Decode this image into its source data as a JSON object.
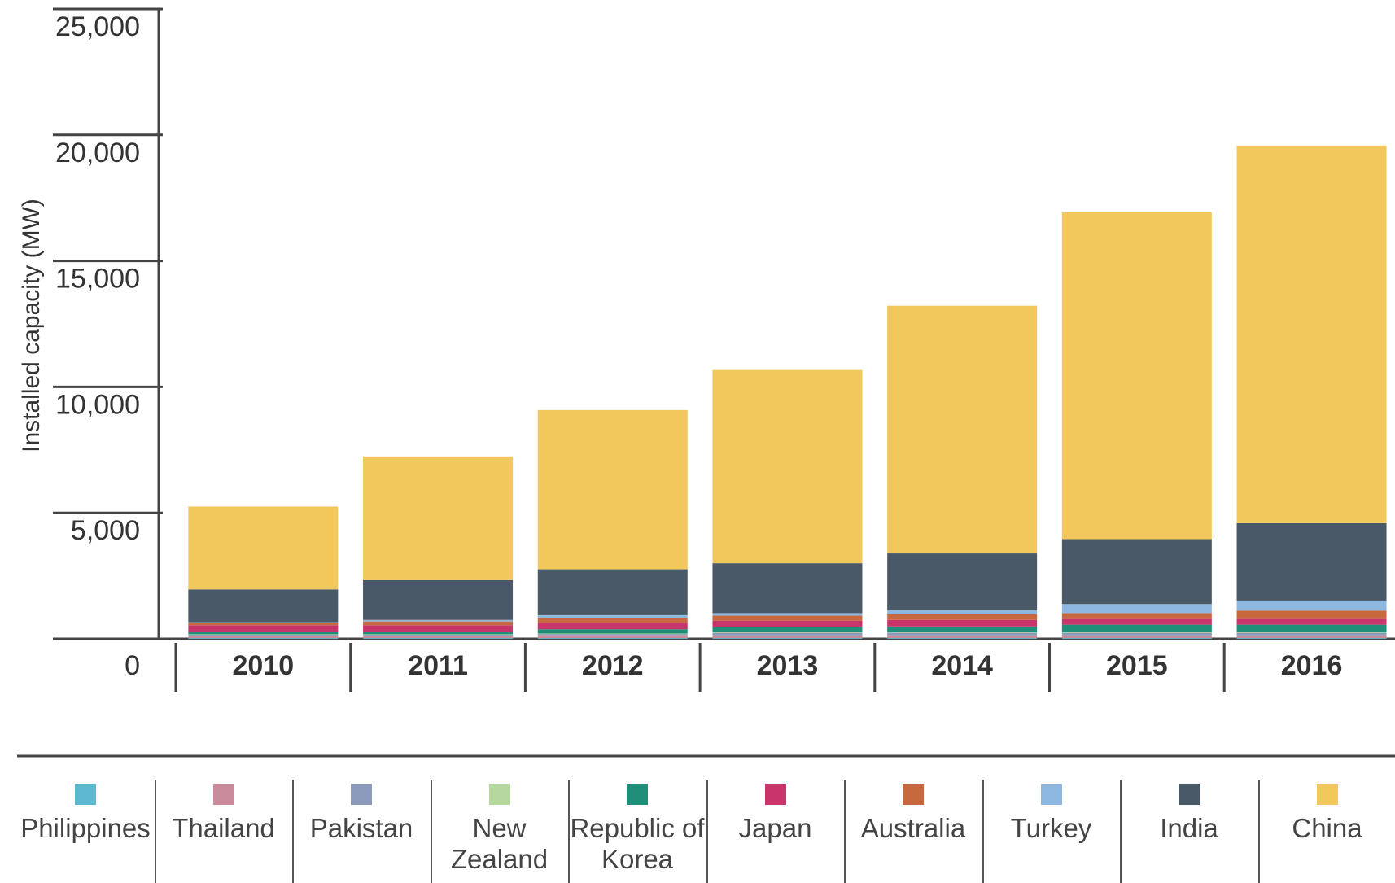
{
  "chart_data": {
    "type": "stacked-bar",
    "y_label": "Installed capacity (MW)",
    "categories": [
      "2010",
      "2011",
      "2012",
      "2013",
      "2014",
      "2015",
      "2016"
    ],
    "ylim": [
      0,
      25000
    ],
    "yticks": [
      0,
      {
        "value": 5000,
        "label": "5,000"
      },
      {
        "value": 10000,
        "label": "10,000"
      },
      {
        "value": 15000,
        "label": "15,000"
      },
      {
        "value": 20000,
        "label": "20,000"
      },
      {
        "value": 25000,
        "label": "25,000"
      }
    ],
    "series": [
      {
        "name": "Philippines",
        "color": "#5bb8cf",
        "values": [
          30,
          30,
          30,
          30,
          30,
          30,
          30
        ]
      },
      {
        "name": "Thailand",
        "color": "#c98a9a",
        "values": [
          80,
          80,
          110,
          110,
          110,
          110,
          110
        ]
      },
      {
        "name": "Pakistan",
        "color": "#8c9bbb",
        "values": [
          50,
          50,
          50,
          100,
          100,
          100,
          100
        ]
      },
      {
        "name": "New Zealand",
        "color": "#b5d89e",
        "values": [
          20,
          20,
          20,
          20,
          20,
          20,
          20
        ]
      },
      {
        "name": "Republic of Korea",
        "color": "#1f8f7a",
        "values": [
          100,
          100,
          170,
          200,
          230,
          300,
          300
        ]
      },
      {
        "name": "Japan",
        "color": "#c9356b",
        "values": [
          260,
          260,
          260,
          260,
          260,
          260,
          260
        ]
      },
      {
        "name": "Australia",
        "color": "#c8683e",
        "values": [
          100,
          150,
          200,
          200,
          230,
          200,
          300
        ]
      },
      {
        "name": "Turkey",
        "color": "#8fb8e0",
        "values": [
          20,
          60,
          100,
          100,
          150,
          360,
          400
        ]
      },
      {
        "name": "India",
        "color": "#4a5968",
        "values": [
          1300,
          1580,
          1820,
          1980,
          2260,
          2580,
          3070
        ]
      },
      {
        "name": "China",
        "color": "#f2c75c",
        "values": [
          3290,
          4910,
          6320,
          7670,
          9830,
          12970,
          14990
        ]
      }
    ]
  }
}
